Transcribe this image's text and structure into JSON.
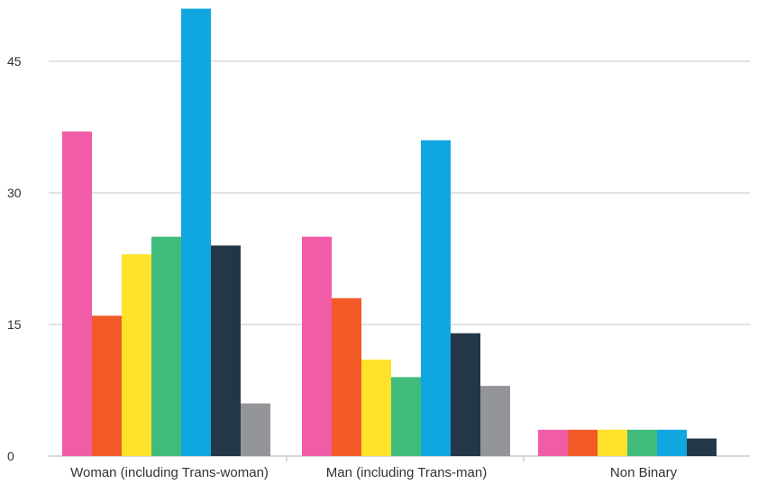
{
  "chart_data": {
    "type": "bar",
    "categories": [
      "Woman (including Trans-woman)",
      "Man (including Trans-man)",
      "Non Binary"
    ],
    "series": [
      {
        "values": [
          37,
          25,
          3
        ],
        "color": "#f05ca6"
      },
      {
        "values": [
          16,
          18,
          3
        ],
        "color": "#f25a28"
      },
      {
        "values": [
          23,
          11,
          3
        ],
        "color": "#ffe22a"
      },
      {
        "values": [
          25,
          9,
          3
        ],
        "color": "#40bb7c"
      },
      {
        "values": [
          51,
          36,
          3
        ],
        "color": "#10a7e0"
      },
      {
        "values": [
          24,
          14,
          2
        ],
        "color": "#243746"
      },
      {
        "values": [
          6,
          8,
          null
        ],
        "color": "#939598"
      }
    ],
    "yticks": [
      0,
      15,
      30,
      45
    ],
    "ylim": [
      0,
      51
    ],
    "grid": true,
    "title": "",
    "xlabel": "",
    "ylabel": ""
  }
}
